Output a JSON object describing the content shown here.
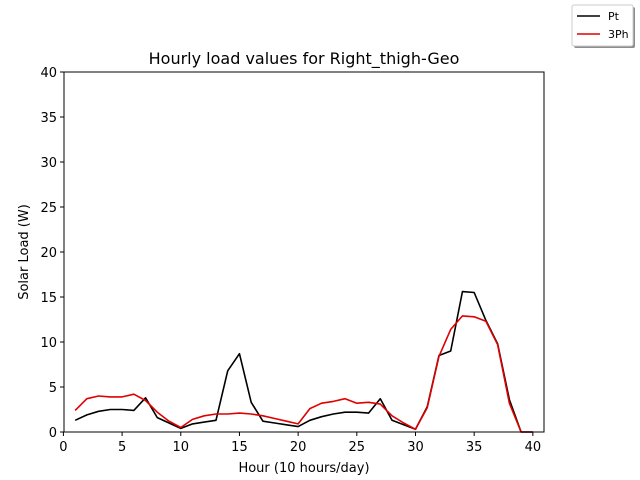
{
  "chart_data": {
    "type": "line",
    "title": "Hourly load values for Right_thigh-Geo",
    "xlabel": "Hour (10 hours/day)",
    "ylabel": "Solar Load (W)",
    "xlim": [
      0.05,
      40.95
    ],
    "ylim": [
      0,
      40
    ],
    "xticks": [
      "0",
      "5",
      "10",
      "15",
      "20",
      "25",
      "30",
      "35",
      "40"
    ],
    "yticks": [
      "0",
      "5",
      "10",
      "15",
      "20",
      "25",
      "30",
      "35",
      "40"
    ],
    "grid": false,
    "legend_placement": "top-right outside",
    "x": [
      1,
      2,
      3,
      4,
      5,
      6,
      7,
      8,
      9,
      10,
      11,
      12,
      13,
      14,
      15,
      16,
      17,
      18,
      19,
      20,
      21,
      22,
      23,
      24,
      25,
      26,
      27,
      28,
      29,
      30,
      31,
      32,
      33,
      34,
      35,
      36,
      37,
      38,
      39,
      40
    ],
    "series": [
      {
        "name": "Pt",
        "color": "#000000",
        "values": [
          1.3,
          1.9,
          2.3,
          2.5,
          2.5,
          2.4,
          3.8,
          1.6,
          1.0,
          0.4,
          0.9,
          1.1,
          1.3,
          6.8,
          8.7,
          3.3,
          1.2,
          1.0,
          0.8,
          0.6,
          1.3,
          1.7,
          2.0,
          2.2,
          2.2,
          2.1,
          3.7,
          1.3,
          0.8,
          0.3,
          2.8,
          8.5,
          9.0,
          15.6,
          15.5,
          12.4,
          9.8,
          3.6,
          0.0,
          0.0
        ]
      },
      {
        "name": "3Ph",
        "color": "#e00000",
        "values": [
          2.4,
          3.7,
          4.0,
          3.9,
          3.9,
          4.2,
          3.5,
          2.2,
          1.2,
          0.5,
          1.4,
          1.8,
          2.0,
          2.0,
          2.1,
          2.0,
          1.8,
          1.5,
          1.2,
          0.9,
          2.6,
          3.2,
          3.4,
          3.7,
          3.2,
          3.3,
          3.1,
          1.8,
          1.0,
          0.3,
          2.7,
          8.4,
          11.4,
          12.9,
          12.8,
          12.3,
          9.7,
          3.2,
          0.0,
          0.0
        ]
      }
    ]
  }
}
